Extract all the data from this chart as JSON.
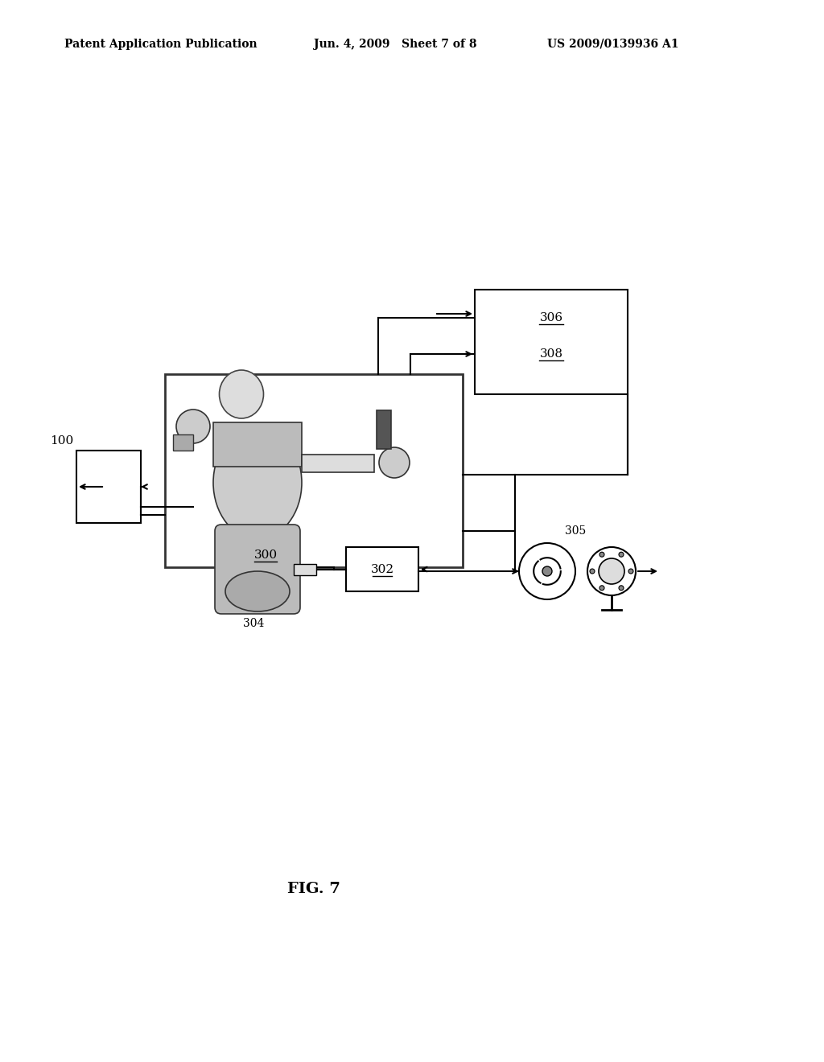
{
  "bg_color": "#ffffff",
  "header_left": "Patent Application Publication",
  "header_mid": "Jun. 4, 2009   Sheet 7 of 8",
  "header_right": "US 2009/0139936 A1",
  "fig_label": "FIG. 7",
  "label_100": "100",
  "label_300": "300",
  "label_302": "302",
  "label_304": "304",
  "label_305": "305",
  "label_306": "306",
  "label_308": "308",
  "text_color": "#000000",
  "line_color": "#000000"
}
